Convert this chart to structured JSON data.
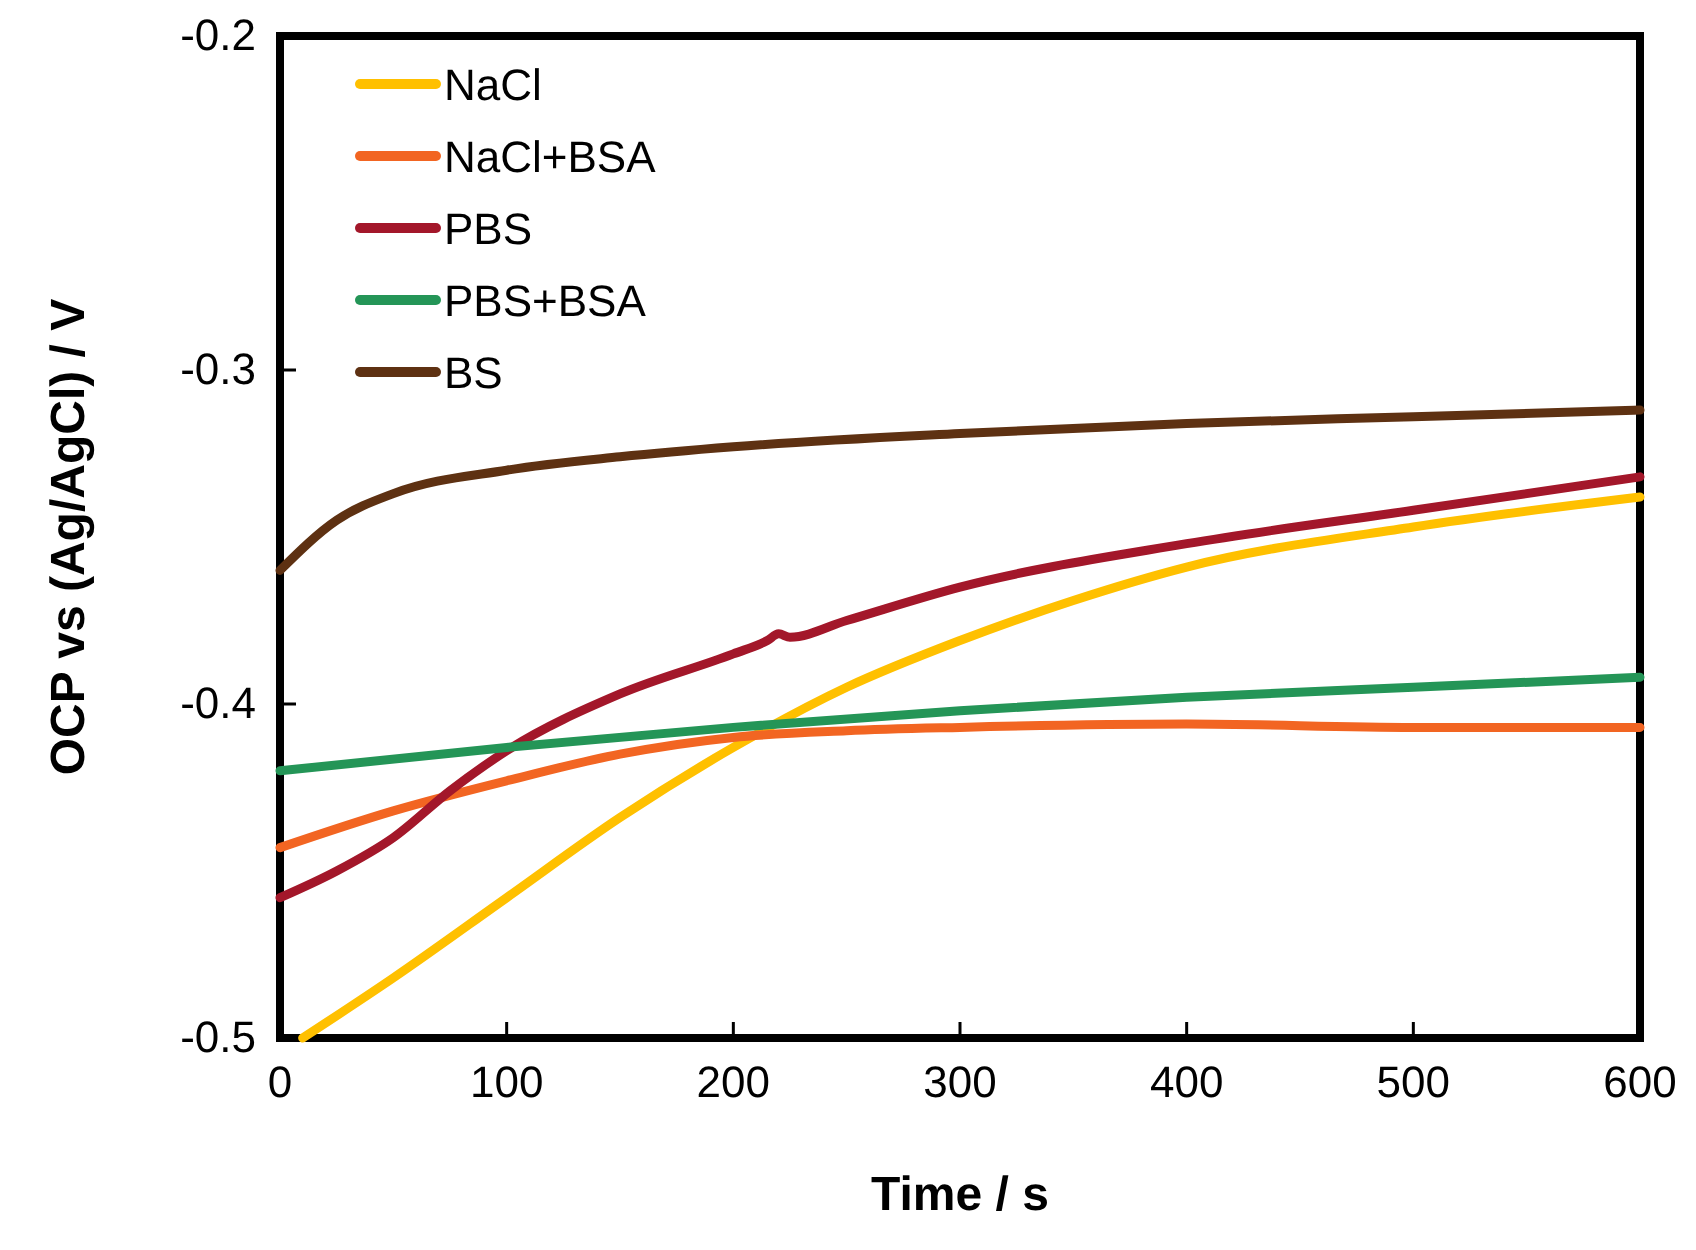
{
  "chart_data": {
    "type": "line",
    "xlabel": "Time / s",
    "ylabel": "OCP vs (Ag/AgCl) / V",
    "xlim": [
      0,
      600
    ],
    "ylim": [
      -0.5,
      -0.2
    ],
    "xticks": [
      0,
      100,
      200,
      300,
      400,
      500,
      600
    ],
    "yticks": [
      -0.5,
      -0.4,
      -0.3,
      -0.2
    ],
    "grid": false,
    "legend": "top left",
    "marker": "none",
    "line_style": "solid",
    "series": [
      {
        "name": "NaCl",
        "color": "#ffc000",
        "x": [
          10,
          50,
          100,
          150,
          200,
          250,
          300,
          350,
          400,
          500,
          600
        ],
        "values": [
          -0.5,
          -0.482,
          -0.458,
          -0.434,
          -0.413,
          -0.395,
          -0.381,
          -0.369,
          -0.359,
          -0.347,
          -0.338
        ]
      },
      {
        "name": "NaCl+BSA",
        "color": "#f26522",
        "x": [
          0,
          50,
          100,
          150,
          200,
          250,
          300,
          400,
          500,
          600
        ],
        "values": [
          -0.443,
          -0.432,
          -0.423,
          -0.415,
          -0.41,
          -0.408,
          -0.407,
          -0.406,
          -0.407,
          -0.407
        ]
      },
      {
        "name": "PBS",
        "color": "#a3172a",
        "x": [
          0,
          25,
          50,
          75,
          100,
          150,
          200,
          215,
          220,
          225,
          250,
          300,
          400,
          500,
          600
        ],
        "values": [
          -0.458,
          -0.45,
          -0.44,
          -0.426,
          -0.414,
          -0.397,
          -0.385,
          -0.381,
          -0.379,
          -0.38,
          -0.375,
          -0.365,
          -0.352,
          -0.342,
          -0.332
        ]
      },
      {
        "name": "PBS+BSA",
        "color": "#249557",
        "x": [
          0,
          100,
          200,
          300,
          400,
          500,
          600
        ],
        "values": [
          -0.42,
          -0.413,
          -0.407,
          -0.402,
          -0.398,
          -0.395,
          -0.392
        ]
      },
      {
        "name": "BS",
        "color": "#5e3112",
        "x": [
          0,
          25,
          50,
          100,
          150,
          200,
          300,
          400,
          500,
          600
        ],
        "values": [
          -0.36,
          -0.345,
          -0.337,
          -0.33,
          -0.326,
          -0.323,
          -0.319,
          -0.316,
          -0.314,
          -0.312
        ]
      }
    ]
  }
}
